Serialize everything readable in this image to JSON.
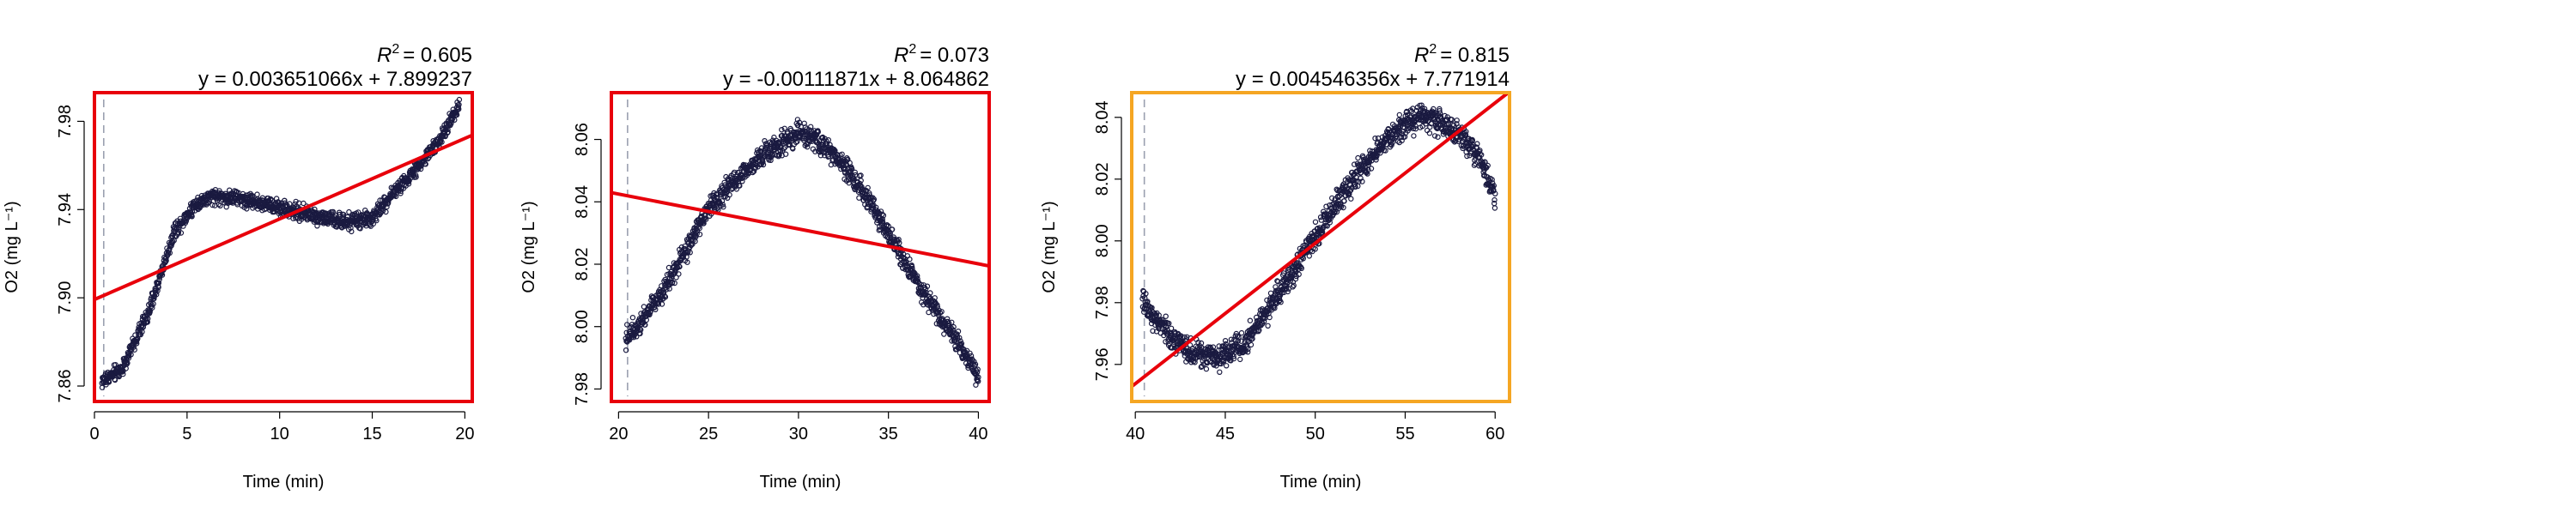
{
  "figure": {
    "background": "#ffffff"
  },
  "chart_data": [
    {
      "type": "scatter",
      "xlabel": "Time (min)",
      "ylabel": "O2 (mg L⁻¹)",
      "r2_label": "R",
      "r2_sup": "2",
      "r2_value": "= 0.605",
      "equation": "y = 0.003651066x + 7.899237",
      "frame_color": "#e8000b",
      "xlim": [
        0,
        20.4
      ],
      "ylim": [
        7.853,
        7.993
      ],
      "xticks": [
        0,
        5,
        10,
        15,
        20
      ],
      "yticks": [
        7.86,
        7.9,
        7.94,
        7.98
      ],
      "ytick_labels": [
        "7.86",
        "7.90",
        "7.94",
        "7.98"
      ],
      "marker_line": 0.5,
      "fit": {
        "slope": 0.003651066,
        "intercept": 7.899237,
        "unit": "min",
        "color": "#e8000b"
      },
      "trend": [
        [
          0.4,
          7.862
        ],
        [
          1.5,
          7.868
        ],
        [
          3,
          7.895
        ],
        [
          4.3,
          7.93
        ],
        [
          5.5,
          7.943
        ],
        [
          6.5,
          7.946
        ],
        [
          7.8,
          7.945
        ],
        [
          9,
          7.943
        ],
        [
          10.5,
          7.94
        ],
        [
          12,
          7.937
        ],
        [
          13.5,
          7.934
        ],
        [
          15,
          7.936
        ],
        [
          16.2,
          7.948
        ],
        [
          17.5,
          7.96
        ],
        [
          18.7,
          7.972
        ],
        [
          19.7,
          7.988
        ]
      ],
      "noise": 0.0022,
      "series": [
        {
          "marker": "open-circle",
          "color": "#1a1a40"
        }
      ]
    },
    {
      "type": "scatter",
      "xlabel": "Time (min)",
      "ylabel": "O2 (mg L⁻¹)",
      "r2_label": "R",
      "r2_sup": "2",
      "r2_value": "= 0.073",
      "equation": "y = -0.00111871x + 8.064862",
      "frame_color": "#e8000b",
      "xlim": [
        19.6,
        40.6
      ],
      "ylim": [
        7.976,
        8.075
      ],
      "xticks": [
        20,
        25,
        30,
        35,
        40
      ],
      "yticks": [
        7.98,
        8.0,
        8.02,
        8.04,
        8.06
      ],
      "ytick_labels": [
        "7.98",
        "8.00",
        "8.02",
        "8.04",
        "8.06"
      ],
      "marker_line": 20.5,
      "fit": {
        "slope": -0.00111871,
        "intercept": 8.064862,
        "unit": "min",
        "color": "#e8000b"
      },
      "trend": [
        [
          20.4,
          7.996
        ],
        [
          21.5,
          8.004
        ],
        [
          23,
          8.016
        ],
        [
          25,
          8.038
        ],
        [
          27,
          8.05
        ],
        [
          28.5,
          8.057
        ],
        [
          30,
          8.062
        ],
        [
          31,
          8.06
        ],
        [
          32.5,
          8.052
        ],
        [
          34,
          8.04
        ],
        [
          35.5,
          8.025
        ],
        [
          37,
          8.01
        ],
        [
          38.5,
          7.998
        ],
        [
          40,
          7.984
        ]
      ],
      "noise": 0.0022,
      "series": [
        {
          "marker": "open-circle",
          "color": "#1a1a40"
        }
      ]
    },
    {
      "type": "scatter",
      "xlabel": "Time (min)",
      "ylabel": "O2 (mg L⁻¹)",
      "r2_label": "R",
      "r2_sup": "2",
      "r2_value": "= 0.815",
      "equation": "y = 0.004546356x + 7.771914",
      "frame_color": "#f5a623",
      "xlim": [
        39.8,
        60.8
      ],
      "ylim": [
        7.948,
        8.048
      ],
      "xticks": [
        40,
        45,
        50,
        55,
        60
      ],
      "yticks": [
        7.96,
        7.98,
        8.0,
        8.02,
        8.04
      ],
      "ytick_labels": [
        "7.96",
        "7.98",
        "8.00",
        "8.02",
        "8.04"
      ],
      "marker_line": 40.5,
      "fit": {
        "slope": 0.004546356,
        "intercept": 7.771914,
        "unit": "min",
        "color": "#e8000b"
      },
      "trend": [
        [
          40.4,
          7.98
        ],
        [
          41.5,
          7.972
        ],
        [
          43,
          7.964
        ],
        [
          44.5,
          7.962
        ],
        [
          46,
          7.966
        ],
        [
          47.5,
          7.979
        ],
        [
          49,
          7.992
        ],
        [
          50.5,
          8.006
        ],
        [
          52,
          8.019
        ],
        [
          53.5,
          8.03
        ],
        [
          55,
          8.038
        ],
        [
          56,
          8.041
        ],
        [
          57,
          8.038
        ],
        [
          58.5,
          8.032
        ],
        [
          59.4,
          8.024
        ],
        [
          60,
          8.014
        ]
      ],
      "noise": 0.0025,
      "series": [
        {
          "marker": "open-circle",
          "color": "#1a1a40"
        }
      ]
    }
  ]
}
